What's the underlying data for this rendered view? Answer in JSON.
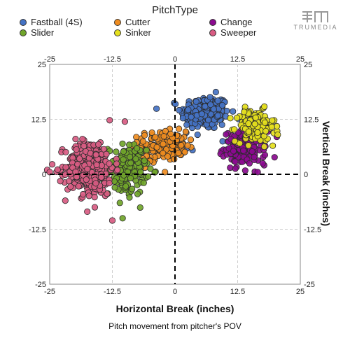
{
  "legend": {
    "title": "PitchType",
    "items": [
      {
        "label": "Fastball (4S)",
        "color": "#4472c4"
      },
      {
        "label": "Cutter",
        "color": "#ef8c1f"
      },
      {
        "label": "Change",
        "color": "#8b0a8f"
      },
      {
        "label": "Slider",
        "color": "#70a52a"
      },
      {
        "label": "Sinker",
        "color": "#e5e01d"
      },
      {
        "label": "Sweeper",
        "color": "#d85b82"
      }
    ]
  },
  "brand": {
    "text": "TRUMEDIA"
  },
  "caption": "Pitch movement from pitcher's POV",
  "chart_data": {
    "type": "scatter",
    "title": "",
    "xlabel": "Horizontal Break (inches)",
    "ylabel": "Vertical Break (inches)",
    "xlim": [
      -25,
      25
    ],
    "ylim": [
      -25,
      25
    ],
    "x_ticks": [
      "-25",
      "-12.5",
      "0",
      "12.5",
      "25"
    ],
    "y_ticks": [
      "25",
      "12.5",
      "0",
      "-12.5",
      "-25"
    ],
    "grid": true,
    "reference_lines": {
      "x": 0,
      "y": 0
    },
    "series": [
      {
        "name": "Fastball (4S)",
        "center": [
          6.0,
          14.0
        ],
        "spread": [
          3.2,
          2.6
        ],
        "count": 230,
        "outliers": [
          [
            3.5,
            5.5
          ],
          [
            9.5,
            7.5
          ],
          [
            4.5,
            9.0
          ]
        ]
      },
      {
        "name": "Cutter",
        "center": [
          -2.5,
          6.5
        ],
        "spread": [
          3.2,
          2.2
        ],
        "count": 150,
        "outliers": [
          [
            -6.0,
            1.5
          ],
          [
            -2.0,
            0.5
          ],
          [
            -5.0,
            3.0
          ]
        ]
      },
      {
        "name": "Change",
        "center": [
          14.0,
          6.0
        ],
        "spread": [
          2.8,
          2.5
        ],
        "count": 170,
        "outliers": [
          [
            11.0,
            1.5
          ],
          [
            16.5,
            0.5
          ],
          [
            17.5,
            2.5
          ]
        ]
      },
      {
        "name": "Slider",
        "center": [
          -9.5,
          1.0
        ],
        "spread": [
          2.5,
          3.8
        ],
        "count": 160,
        "outliers": [
          [
            -11.0,
            -6.5
          ],
          [
            -12.0,
            -3.0
          ]
        ]
      },
      {
        "name": "Sinker",
        "center": [
          16.0,
          11.0
        ],
        "spread": [
          2.6,
          2.4
        ],
        "count": 150,
        "outliers": [
          [
            20.5,
            9.0
          ],
          [
            19.5,
            6.5
          ]
        ]
      },
      {
        "name": "Sweeper",
        "center": [
          -17.0,
          1.5
        ],
        "spread": [
          3.2,
          4.2
        ],
        "count": 320,
        "outliers": [
          [
            -25.5,
            1.0
          ],
          [
            -25.0,
            0.5
          ],
          [
            -12.5,
            -10.5
          ],
          [
            -17.5,
            -8.5
          ],
          [
            -10.0,
            12.0
          ],
          [
            -16.0,
            -7.5
          ]
        ]
      }
    ]
  }
}
